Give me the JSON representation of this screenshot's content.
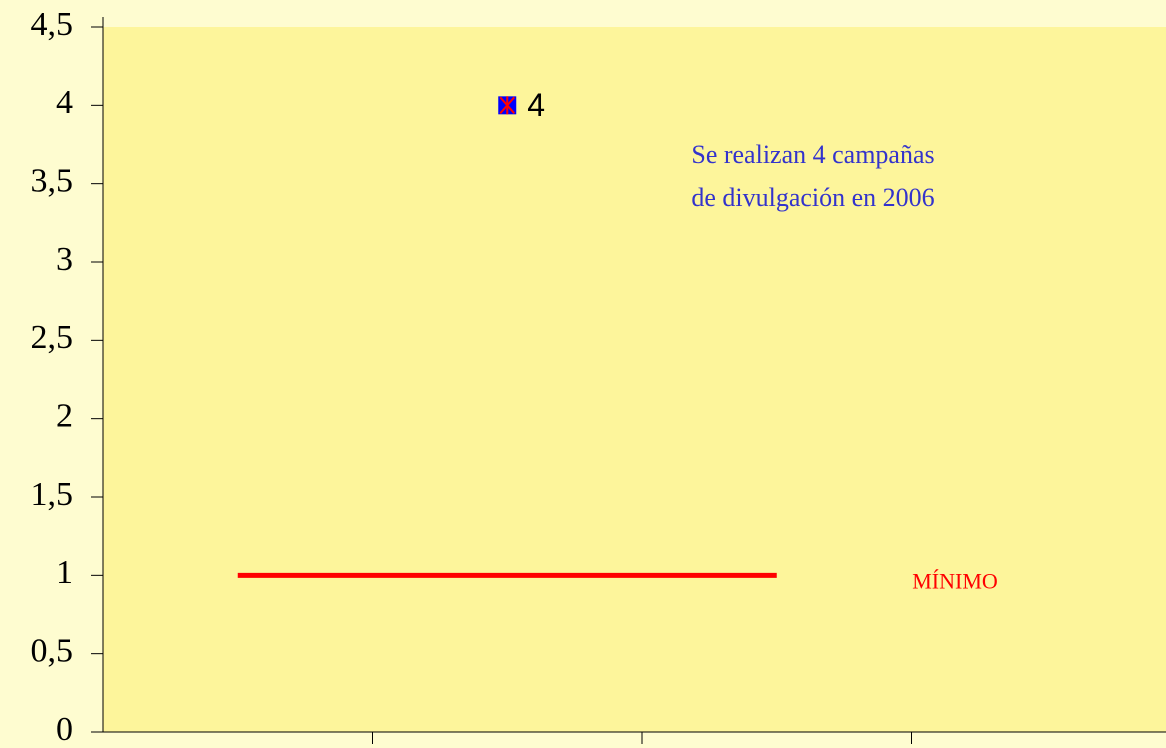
{
  "chart_data": {
    "type": "line",
    "categories": [
      null,
      null,
      null,
      null
    ],
    "series": [
      {
        "values": [
          null,
          4,
          null,
          null
        ],
        "value_labels": [
          null,
          "4",
          null,
          null
        ],
        "color": "#0000ff",
        "marker": "square"
      },
      {
        "name": "MÍNIMO",
        "values": [
          1,
          1,
          1,
          null
        ],
        "color": "#ff0000"
      }
    ],
    "ylim": [
      0,
      4.5
    ],
    "yticks": [
      0,
      {
        "value": 0.5,
        "label": "0,5"
      },
      1,
      {
        "value": 1.5,
        "label": "1,5"
      },
      2,
      {
        "value": 2.5,
        "label": "2,5"
      },
      3,
      {
        "value": 3.5,
        "label": "3,5"
      },
      4,
      {
        "value": 4.5,
        "label": "4,5"
      }
    ],
    "annotation": [
      "Se realizan 4 campañas",
      "de divulgación en 2006"
    ]
  }
}
